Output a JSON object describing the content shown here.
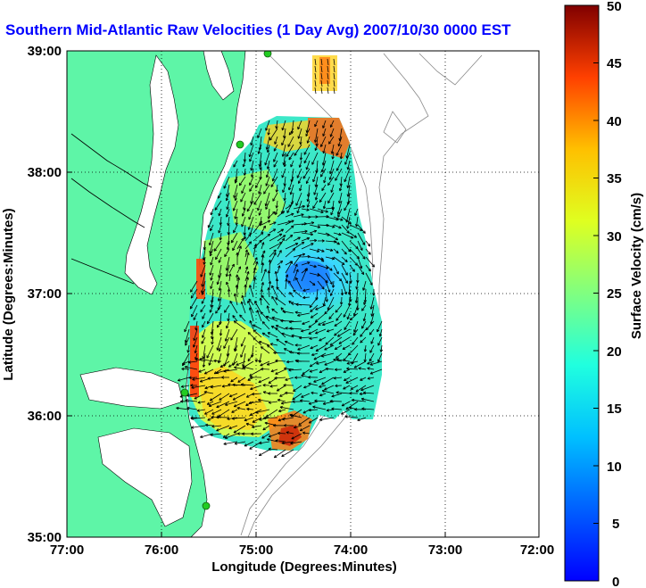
{
  "title": "Southern Mid-Atlantic Raw Velocities (1 Day Avg) 2007/10/30 0000 EST",
  "xlabel": "Longitude (Degrees:Minutes)",
  "ylabel": "Latitude (Degrees:Minutes)",
  "x_ticks": [
    "77:00",
    "76:00",
    "75:00",
    "74:00",
    "73:00",
    "72:00"
  ],
  "y_ticks": [
    "39:00",
    "38:00",
    "37:00",
    "36:00",
    "35:00"
  ],
  "colorbar": {
    "label": "Surface Velocity (cm/s)",
    "ticks": [
      "50",
      "45",
      "40",
      "35",
      "30",
      "25",
      "20",
      "15",
      "10",
      "5",
      "0"
    ],
    "range": [
      0,
      50
    ],
    "colormap": "jet"
  },
  "map": {
    "lon_range": [
      -77,
      -72
    ],
    "lat_range": [
      35,
      39
    ],
    "land_color": "#5ef5a7",
    "grid": "dotted"
  },
  "colors": {
    "title": "#0000ff",
    "stations": "#22cc22",
    "vectors": "#000000"
  }
}
